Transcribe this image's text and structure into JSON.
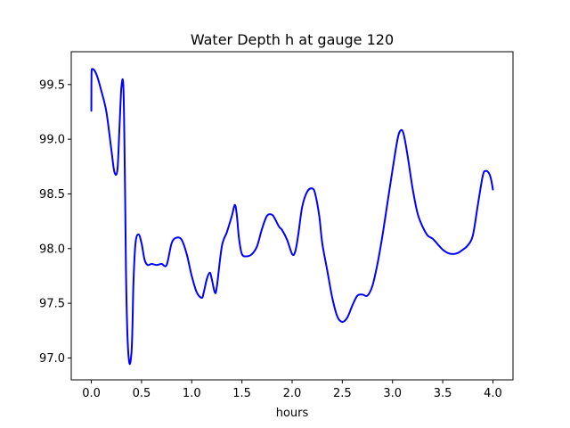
{
  "chart_data": {
    "type": "line",
    "title": "Water Depth h at gauge 120",
    "xlabel": "hours",
    "ylabel": "",
    "xlim": [
      -0.2,
      4.2
    ],
    "ylim": [
      96.8,
      99.8
    ],
    "grid": false,
    "legend": "none",
    "x_ticks": [
      0.0,
      0.5,
      1.0,
      1.5,
      2.0,
      2.5,
      3.0,
      3.5,
      4.0
    ],
    "x_tick_labels": [
      "0.0",
      "0.5",
      "1.0",
      "1.5",
      "2.0",
      "2.5",
      "3.0",
      "3.5",
      "4.0"
    ],
    "y_ticks": [
      97.0,
      97.5,
      98.0,
      98.5,
      99.0,
      99.5
    ],
    "y_tick_labels": [
      "97.0",
      "97.5",
      "98.0",
      "98.5",
      "99.0",
      "99.5"
    ],
    "series": [
      {
        "color": "#0000ff",
        "x": [
          0.0,
          0.002,
          0.01,
          0.03,
          0.06,
          0.1,
          0.15,
          0.2,
          0.23,
          0.26,
          0.28,
          0.3,
          0.32,
          0.335,
          0.345,
          0.36,
          0.38,
          0.4,
          0.41,
          0.42,
          0.44,
          0.47,
          0.5,
          0.53,
          0.56,
          0.6,
          0.65,
          0.7,
          0.75,
          0.8,
          0.85,
          0.9,
          0.95,
          1.0,
          1.05,
          1.1,
          1.12,
          1.15,
          1.18,
          1.2,
          1.23,
          1.25,
          1.3,
          1.35,
          1.4,
          1.43,
          1.45,
          1.47,
          1.5,
          1.55,
          1.6,
          1.65,
          1.7,
          1.75,
          1.8,
          1.83,
          1.87,
          1.9,
          1.95,
          2.0,
          2.03,
          2.06,
          2.1,
          2.15,
          2.2,
          2.23,
          2.27,
          2.3,
          2.35,
          2.4,
          2.45,
          2.5,
          2.55,
          2.6,
          2.65,
          2.7,
          2.75,
          2.8,
          2.85,
          2.9,
          2.95,
          3.0,
          3.05,
          3.08,
          3.11,
          3.15,
          3.2,
          3.25,
          3.3,
          3.35,
          3.4,
          3.45,
          3.5,
          3.55,
          3.6,
          3.65,
          3.7,
          3.75,
          3.8,
          3.85,
          3.9,
          3.93,
          3.96,
          3.98,
          4.0
        ],
        "values": [
          99.26,
          99.6,
          99.64,
          99.63,
          99.57,
          99.44,
          99.25,
          98.9,
          98.7,
          98.72,
          99.1,
          99.48,
          99.46,
          98.6,
          97.8,
          97.2,
          96.95,
          97.05,
          97.3,
          97.7,
          98.05,
          98.13,
          98.05,
          97.9,
          97.85,
          97.86,
          97.85,
          97.86,
          97.85,
          98.05,
          98.1,
          98.08,
          97.95,
          97.75,
          97.6,
          97.55,
          97.6,
          97.72,
          97.78,
          97.72,
          97.6,
          97.65,
          98.02,
          98.15,
          98.3,
          98.4,
          98.3,
          98.1,
          97.95,
          97.93,
          97.95,
          98.02,
          98.18,
          98.3,
          98.31,
          98.27,
          98.2,
          98.17,
          98.08,
          97.95,
          97.97,
          98.12,
          98.38,
          98.52,
          98.55,
          98.5,
          98.3,
          98.05,
          97.8,
          97.55,
          97.38,
          97.33,
          97.37,
          97.48,
          97.57,
          97.58,
          97.57,
          97.66,
          97.86,
          98.12,
          98.42,
          98.72,
          99.0,
          99.08,
          99.05,
          98.85,
          98.55,
          98.32,
          98.2,
          98.12,
          98.09,
          98.04,
          97.99,
          97.96,
          97.95,
          97.96,
          97.99,
          98.03,
          98.12,
          98.4,
          98.67,
          98.71,
          98.69,
          98.64,
          98.54
        ]
      }
    ]
  }
}
